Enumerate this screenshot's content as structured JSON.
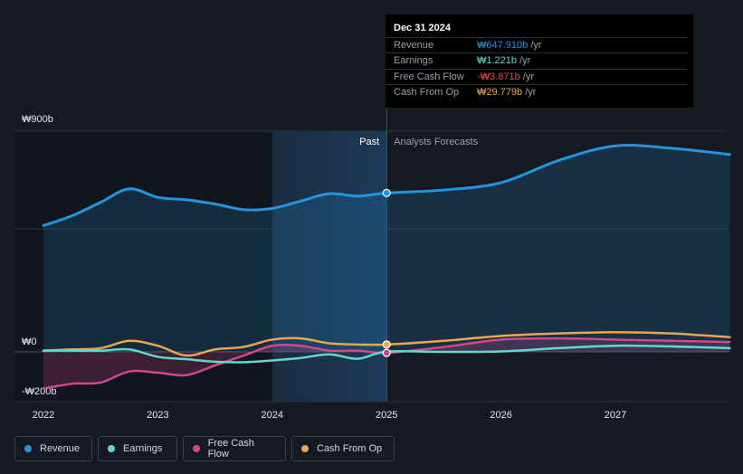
{
  "chart_data": {
    "type": "line",
    "currency": "₩",
    "ylim": [
      -200,
      900
    ],
    "y_ticks": [
      {
        "value": 900,
        "label": "₩900b"
      },
      {
        "value": 0,
        "label": "₩0"
      },
      {
        "value": -200,
        "label": "-₩200b"
      }
    ],
    "x_ticks": [
      {
        "value": 2022,
        "label": "2022"
      },
      {
        "value": 2023,
        "label": "2023"
      },
      {
        "value": 2024,
        "label": "2024"
      },
      {
        "value": 2025,
        "label": "2025"
      },
      {
        "value": 2026,
        "label": "2026"
      },
      {
        "value": 2027,
        "label": "2027"
      }
    ],
    "xlim": [
      2021.74,
      2028.0
    ],
    "past_end": 2025.0,
    "highlight_start": 2024.0,
    "region_labels": {
      "past": "Past",
      "forecast": "Analysts Forecasts"
    },
    "series": [
      {
        "name": "Revenue",
        "color": "#2394df",
        "fill": true,
        "points": [
          [
            2022.0,
            515
          ],
          [
            2022.25,
            555
          ],
          [
            2022.5,
            610
          ],
          [
            2022.75,
            665
          ],
          [
            2023.0,
            630
          ],
          [
            2023.25,
            620
          ],
          [
            2023.5,
            603
          ],
          [
            2023.75,
            580
          ],
          [
            2024.0,
            585
          ],
          [
            2024.25,
            615
          ],
          [
            2024.5,
            645
          ],
          [
            2024.75,
            635
          ],
          [
            2025.0,
            648
          ],
          [
            2025.5,
            660
          ],
          [
            2026.0,
            690
          ],
          [
            2026.5,
            780
          ],
          [
            2027.0,
            840
          ],
          [
            2027.5,
            830
          ],
          [
            2028.0,
            805
          ]
        ]
      },
      {
        "name": "Earnings",
        "color": "#5ed9cc",
        "fill": false,
        "points": [
          [
            2022.0,
            5
          ],
          [
            2022.25,
            5
          ],
          [
            2022.5,
            5
          ],
          [
            2022.75,
            10
          ],
          [
            2023.0,
            -20
          ],
          [
            2023.25,
            -30
          ],
          [
            2023.5,
            -40
          ],
          [
            2023.75,
            -42
          ],
          [
            2024.0,
            -35
          ],
          [
            2024.25,
            -25
          ],
          [
            2024.5,
            -10
          ],
          [
            2024.75,
            -28
          ],
          [
            2025.0,
            1
          ],
          [
            2025.5,
            0
          ],
          [
            2026.0,
            2
          ],
          [
            2026.5,
            15
          ],
          [
            2027.0,
            25
          ],
          [
            2027.5,
            22
          ],
          [
            2028.0,
            15
          ]
        ]
      },
      {
        "name": "Free Cash Flow",
        "color": "#d1478c",
        "fill": true,
        "points": [
          [
            2022.0,
            -150
          ],
          [
            2022.25,
            -130
          ],
          [
            2022.5,
            -125
          ],
          [
            2022.75,
            -80
          ],
          [
            2023.0,
            -85
          ],
          [
            2023.25,
            -95
          ],
          [
            2023.5,
            -55
          ],
          [
            2023.75,
            -15
          ],
          [
            2024.0,
            25
          ],
          [
            2024.25,
            25
          ],
          [
            2024.5,
            5
          ],
          [
            2024.75,
            5
          ],
          [
            2025.0,
            -4
          ],
          [
            2025.5,
            20
          ],
          [
            2026.0,
            50
          ],
          [
            2026.5,
            55
          ],
          [
            2027.0,
            50
          ],
          [
            2027.5,
            45
          ],
          [
            2028.0,
            40
          ]
        ]
      },
      {
        "name": "Cash From Op",
        "color": "#e8a654",
        "fill": false,
        "points": [
          [
            2022.0,
            5
          ],
          [
            2022.25,
            10
          ],
          [
            2022.5,
            15
          ],
          [
            2022.75,
            45
          ],
          [
            2023.0,
            25
          ],
          [
            2023.25,
            -15
          ],
          [
            2023.5,
            10
          ],
          [
            2023.75,
            20
          ],
          [
            2024.0,
            50
          ],
          [
            2024.25,
            55
          ],
          [
            2024.5,
            35
          ],
          [
            2024.75,
            30
          ],
          [
            2025.0,
            30
          ],
          [
            2025.5,
            45
          ],
          [
            2026.0,
            65
          ],
          [
            2026.5,
            75
          ],
          [
            2027.0,
            80
          ],
          [
            2027.5,
            75
          ],
          [
            2028.0,
            60
          ]
        ]
      }
    ]
  },
  "tooltip": {
    "date": "Dec 31 2024",
    "rows": [
      {
        "label": "Revenue",
        "value": "₩647.910b",
        "unit": " /yr",
        "color": "#2394df"
      },
      {
        "label": "Earnings",
        "value": "₩1.221b",
        "unit": " /yr",
        "color": "#5ed9cc"
      },
      {
        "label": "Free Cash Flow",
        "value": "-₩3.871b",
        "unit": " /yr",
        "color": "#e5484d"
      },
      {
        "label": "Cash From Op",
        "value": "₩29.779b",
        "unit": " /yr",
        "color": "#e8a654"
      }
    ]
  },
  "legend": [
    {
      "label": "Revenue",
      "color": "#2394df"
    },
    {
      "label": "Earnings",
      "color": "#5ed9cc"
    },
    {
      "label": "Free Cash Flow",
      "color": "#d1478c"
    },
    {
      "label": "Cash From Op",
      "color": "#e8a654"
    }
  ]
}
